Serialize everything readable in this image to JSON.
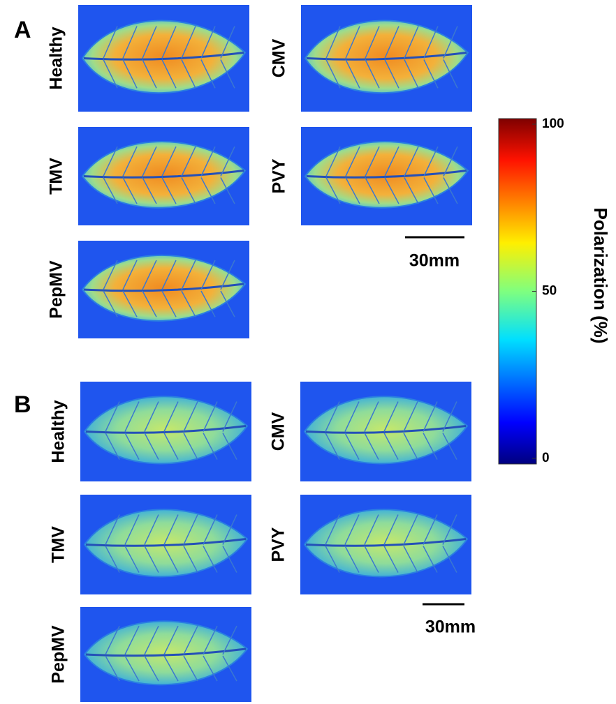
{
  "panels": [
    {
      "label": "A",
      "images": [
        {
          "label": "Healthy"
        },
        {
          "label": "CMV"
        },
        {
          "label": "TMV"
        },
        {
          "label": "PVY"
        },
        {
          "label": "PepMV"
        }
      ],
      "scale_bar": "30mm"
    },
    {
      "label": "B",
      "images": [
        {
          "label": "Healthy"
        },
        {
          "label": "CMV"
        },
        {
          "label": "TMV"
        },
        {
          "label": "PVY"
        },
        {
          "label": "PepMV"
        }
      ],
      "scale_bar": "30mm"
    }
  ],
  "colorbar": {
    "label": "Polarization (%)",
    "ticks": [
      0,
      50,
      100
    ]
  }
}
